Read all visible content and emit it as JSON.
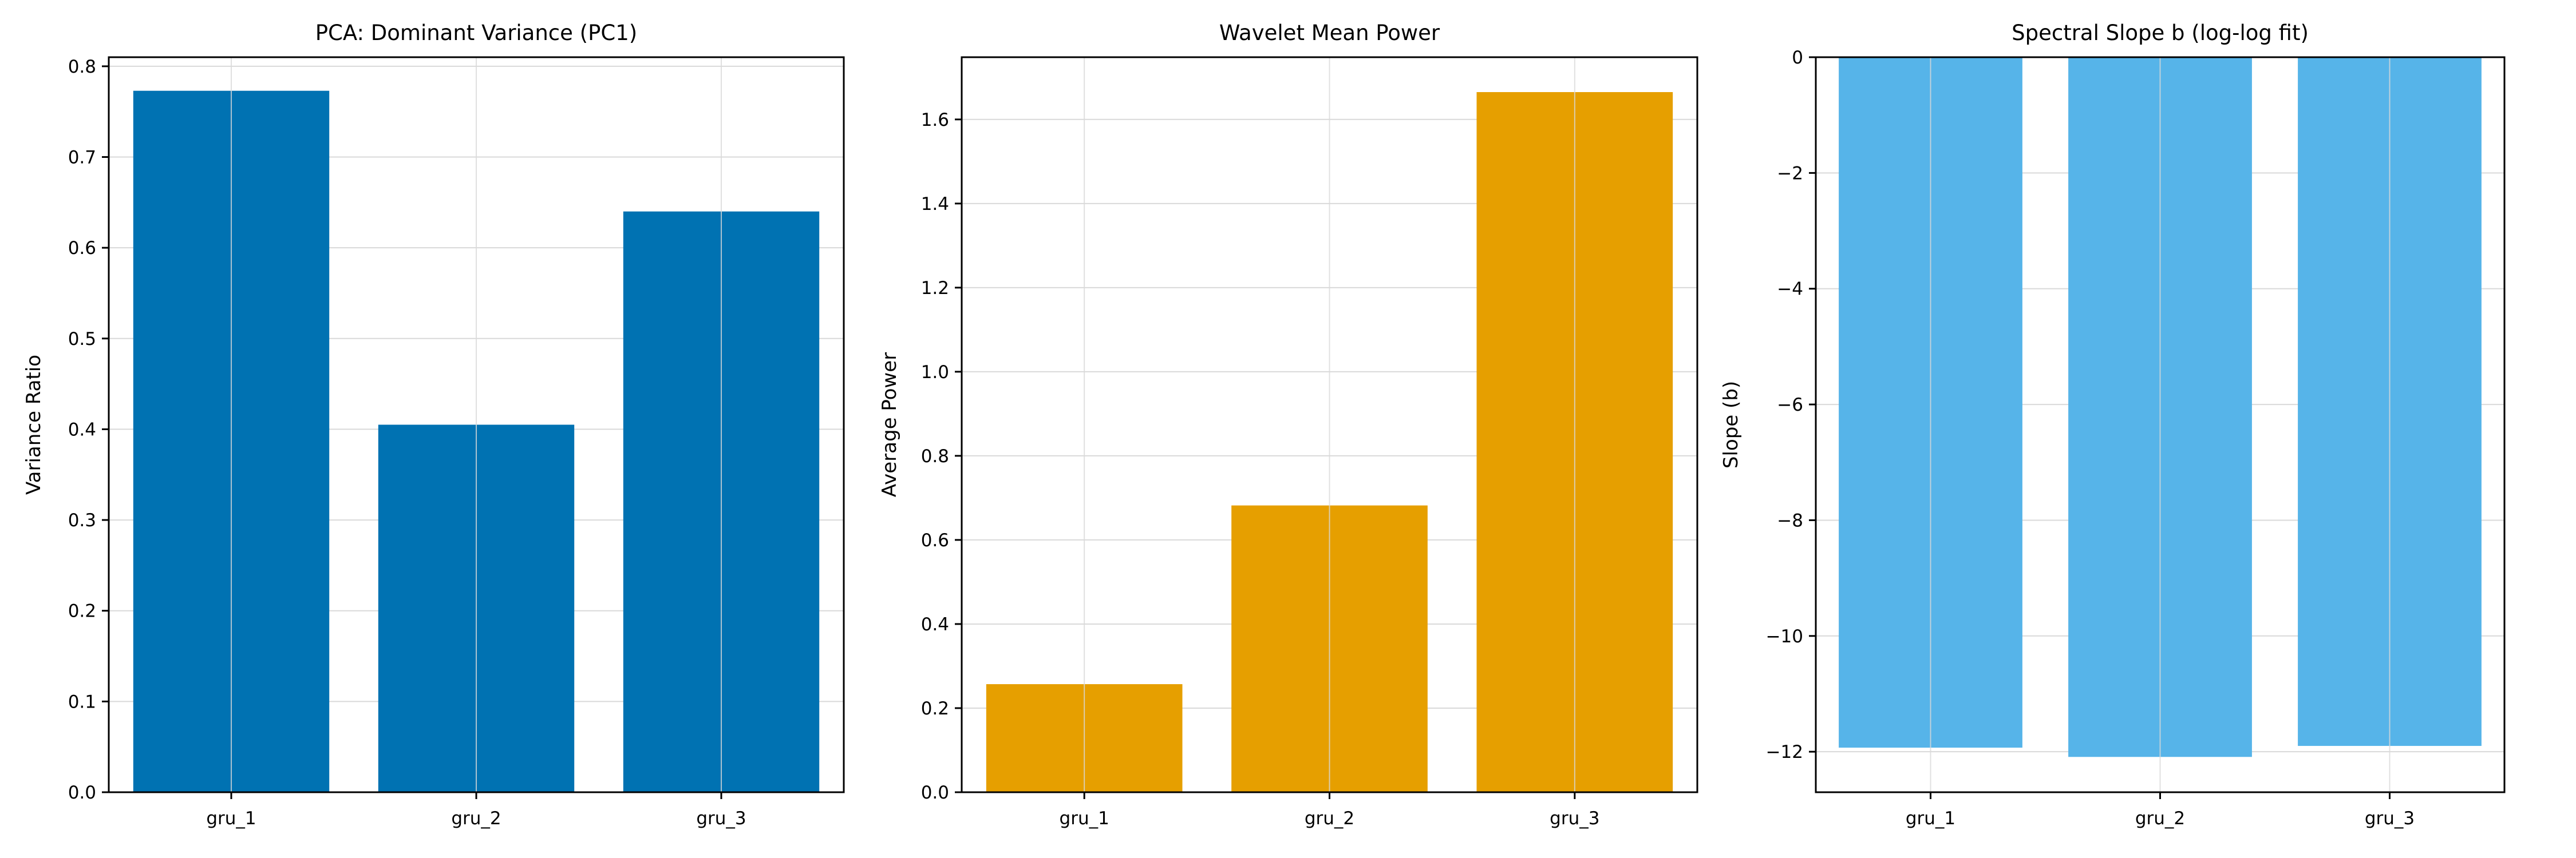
{
  "chart_data": [
    {
      "type": "bar",
      "title": "PCA: Dominant Variance (PC1)",
      "xlabel": "",
      "ylabel": "Variance Ratio",
      "categories": [
        "gru_1",
        "gru_2",
        "gru_3"
      ],
      "values": [
        0.773,
        0.405,
        0.64
      ],
      "ylim": [
        0,
        0.81
      ],
      "yticks": [
        0.0,
        0.1,
        0.2,
        0.3,
        0.4,
        0.5,
        0.6,
        0.7,
        0.8
      ],
      "ytick_labels": [
        "0.0",
        "0.1",
        "0.2",
        "0.3",
        "0.4",
        "0.5",
        "0.6",
        "0.7",
        "0.8"
      ],
      "color": "#0072B2",
      "grid": true,
      "legend": "none"
    },
    {
      "type": "bar",
      "title": "Wavelet Mean Power",
      "xlabel": "",
      "ylabel": "Average Power",
      "categories": [
        "gru_1",
        "gru_2",
        "gru_3"
      ],
      "values": [
        0.257,
        0.682,
        1.665
      ],
      "ylim": [
        0,
        1.748
      ],
      "yticks": [
        0.0,
        0.2,
        0.4,
        0.6,
        0.8,
        1.0,
        1.2,
        1.4,
        1.6
      ],
      "ytick_labels": [
        "0.0",
        "0.2",
        "0.4",
        "0.6",
        "0.8",
        "1.0",
        "1.2",
        "1.4",
        "1.6"
      ],
      "color": "#E69F00",
      "grid": true,
      "legend": "none"
    },
    {
      "type": "bar",
      "title": "Spectral Slope b (log-log fit)",
      "xlabel": "",
      "ylabel": "Slope (b)",
      "categories": [
        "gru_1",
        "gru_2",
        "gru_3"
      ],
      "values": [
        -11.93,
        -12.09,
        -11.9
      ],
      "ylim": [
        -12.7,
        0
      ],
      "yticks": [
        0,
        -2,
        -4,
        -6,
        -8,
        -10,
        -12
      ],
      "ytick_labels": [
        "0",
        "−2",
        "−4",
        "−6",
        "−8",
        "−10",
        "−12"
      ],
      "color": "#56B4E9",
      "grid": true,
      "legend": "none"
    }
  ]
}
